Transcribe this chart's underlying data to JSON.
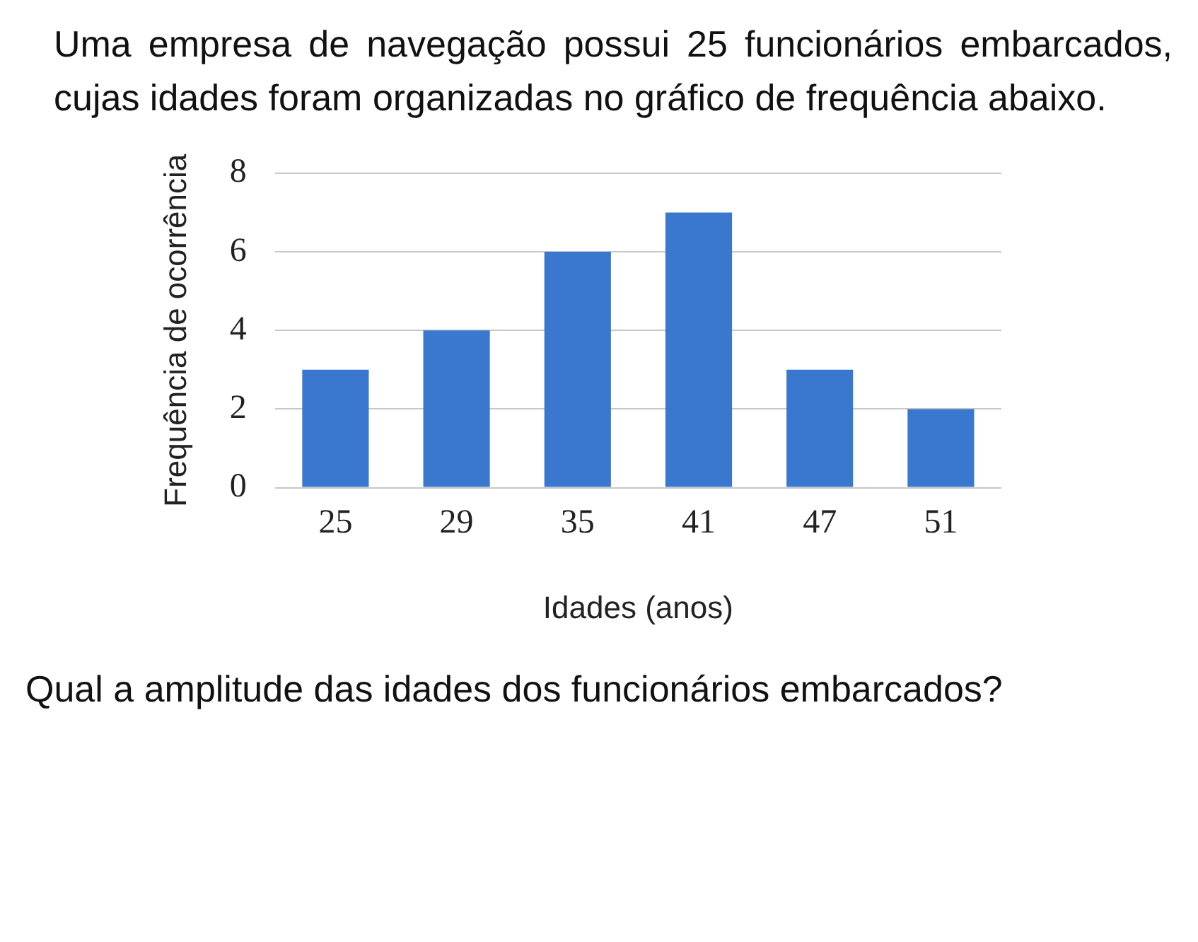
{
  "chart_data": {
    "type": "bar",
    "title": "Uma empresa de navegação possui 25 funcionários embarcados, cujas idades foram organizadas no gráfico de frequência abaixo.",
    "categories": [
      "25",
      "29",
      "35",
      "41",
      "47",
      "51"
    ],
    "values": [
      3,
      4,
      6,
      7,
      3,
      2
    ],
    "color": "#3a78d0",
    "xlabel": "Idades (anos)",
    "ylabel": "Frequência de ocorrência",
    "ylim": [
      0,
      8
    ],
    "yticks": [
      0,
      2,
      4,
      6,
      8
    ],
    "grid": "y",
    "annotations": [
      "Qual a amplitude das idades dos funcionários embarcados?"
    ]
  }
}
